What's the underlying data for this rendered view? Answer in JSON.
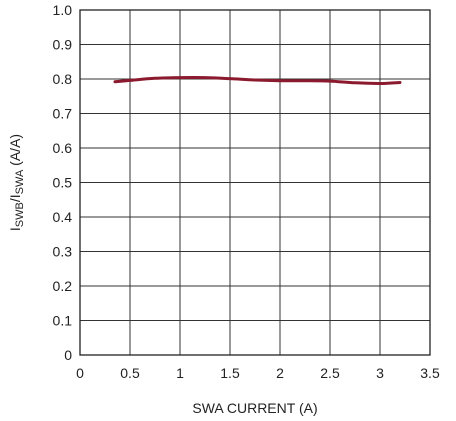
{
  "chart_data": {
    "type": "line",
    "title": "",
    "xlabel": "SWA CURRENT (A)",
    "ylabel": {
      "parts": [
        {
          "text": "I",
          "sub": false
        },
        {
          "text": "SWB",
          "sub": true
        },
        {
          "text": "/I",
          "sub": false
        },
        {
          "text": "SWA",
          "sub": true
        },
        {
          "text": " (A/A)",
          "sub": false
        }
      ]
    },
    "xlim": [
      0,
      3.5
    ],
    "ylim": [
      0,
      1.0
    ],
    "x_ticks": [
      "0",
      "0.5",
      "1",
      "1.5",
      "2",
      "2.5",
      "3",
      "3.5"
    ],
    "y_ticks": [
      "0",
      "0.1",
      "0.2",
      "0.3",
      "0.4",
      "0.5",
      "0.6",
      "0.7",
      "0.8",
      "0.9",
      "1.0"
    ],
    "grid": true,
    "series": [
      {
        "color": "#8b1a2e",
        "x": [
          0.35,
          0.5,
          0.75,
          1.0,
          1.25,
          1.5,
          1.75,
          2.0,
          2.25,
          2.5,
          2.75,
          3.0,
          3.2
        ],
        "y": [
          0.792,
          0.796,
          0.802,
          0.804,
          0.804,
          0.801,
          0.797,
          0.795,
          0.795,
          0.794,
          0.789,
          0.787,
          0.79
        ]
      }
    ]
  }
}
